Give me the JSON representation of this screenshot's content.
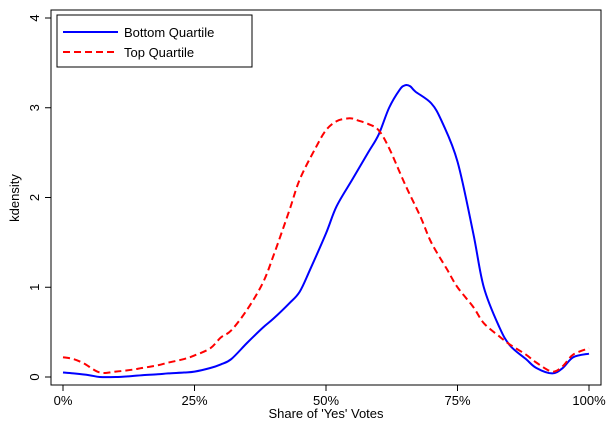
{
  "chart_data": {
    "type": "line",
    "title": "",
    "xlabel": "Share of 'Yes' Votes",
    "ylabel": "kdensity",
    "xlim": [
      0,
      1
    ],
    "ylim": [
      0,
      4
    ],
    "x_ticks": [
      {
        "value": 0,
        "label": "0%"
      },
      {
        "value": 0.25,
        "label": "25%"
      },
      {
        "value": 0.5,
        "label": "50%"
      },
      {
        "value": 0.75,
        "label": "75%"
      },
      {
        "value": 1,
        "label": "100%"
      }
    ],
    "y_ticks": [
      {
        "value": 0,
        "label": "0"
      },
      {
        "value": 1,
        "label": "1"
      },
      {
        "value": 2,
        "label": "2"
      },
      {
        "value": 3,
        "label": "3"
      },
      {
        "value": 4,
        "label": "4"
      }
    ],
    "grid": false,
    "legend_position": "top-left",
    "series": [
      {
        "name": "Bottom Quartile",
        "color": "#0000ff",
        "dash": "solid",
        "x": [
          0,
          0.02,
          0.05,
          0.07,
          0.1,
          0.13,
          0.15,
          0.18,
          0.2,
          0.23,
          0.25,
          0.28,
          0.3,
          0.32,
          0.35,
          0.38,
          0.4,
          0.43,
          0.45,
          0.47,
          0.5,
          0.52,
          0.55,
          0.58,
          0.6,
          0.62,
          0.64,
          0.65,
          0.66,
          0.67,
          0.7,
          0.72,
          0.75,
          0.78,
          0.8,
          0.83,
          0.85,
          0.88,
          0.9,
          0.93,
          0.95,
          0.97,
          1
        ],
        "y": [
          0.05,
          0.04,
          0.02,
          0.0,
          0.0,
          0.01,
          0.02,
          0.03,
          0.04,
          0.05,
          0.06,
          0.1,
          0.14,
          0.2,
          0.38,
          0.55,
          0.65,
          0.82,
          0.95,
          1.2,
          1.6,
          1.9,
          2.2,
          2.5,
          2.7,
          3.0,
          3.2,
          3.25,
          3.24,
          3.18,
          3.05,
          2.85,
          2.4,
          1.6,
          1.0,
          0.55,
          0.35,
          0.2,
          0.1,
          0.04,
          0.1,
          0.22,
          0.26
        ]
      },
      {
        "name": "Top Quartile",
        "color": "#ff0000",
        "dash": "dashed",
        "x": [
          0,
          0.02,
          0.04,
          0.07,
          0.1,
          0.13,
          0.15,
          0.18,
          0.2,
          0.23,
          0.25,
          0.28,
          0.3,
          0.32,
          0.35,
          0.38,
          0.4,
          0.43,
          0.45,
          0.48,
          0.5,
          0.52,
          0.54,
          0.55,
          0.56,
          0.58,
          0.6,
          0.62,
          0.65,
          0.68,
          0.7,
          0.73,
          0.75,
          0.78,
          0.8,
          0.83,
          0.85,
          0.88,
          0.9,
          0.93,
          0.95,
          0.97,
          1
        ],
        "y": [
          0.22,
          0.2,
          0.15,
          0.05,
          0.06,
          0.08,
          0.1,
          0.13,
          0.16,
          0.2,
          0.24,
          0.32,
          0.44,
          0.52,
          0.75,
          1.05,
          1.35,
          1.85,
          2.2,
          2.55,
          2.75,
          2.85,
          2.88,
          2.88,
          2.86,
          2.82,
          2.75,
          2.55,
          2.15,
          1.78,
          1.5,
          1.2,
          1.0,
          0.78,
          0.6,
          0.45,
          0.36,
          0.25,
          0.16,
          0.06,
          0.12,
          0.25,
          0.32
        ]
      }
    ]
  }
}
